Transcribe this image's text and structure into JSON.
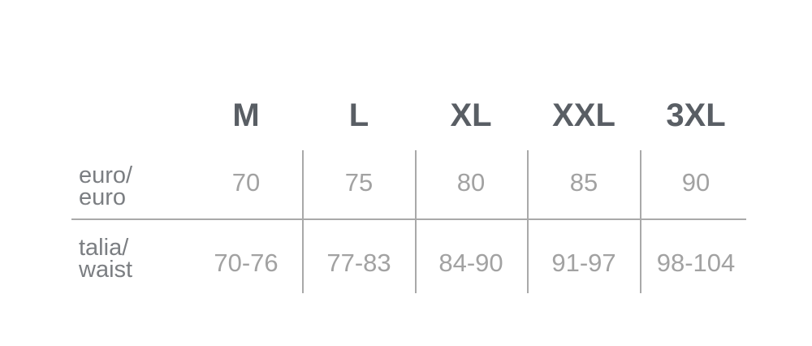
{
  "table": {
    "columns": [
      "M",
      "L",
      "XL",
      "XXL",
      "3XL"
    ],
    "rows": [
      {
        "label_line1": "euro/",
        "label_line2": "euro",
        "values": [
          "70",
          "75",
          "80",
          "85",
          "90"
        ]
      },
      {
        "label_line1": "talia/",
        "label_line2": "waist",
        "values": [
          "70-76",
          "77-83",
          "84-90",
          "91-97",
          "98-104"
        ]
      }
    ]
  }
}
